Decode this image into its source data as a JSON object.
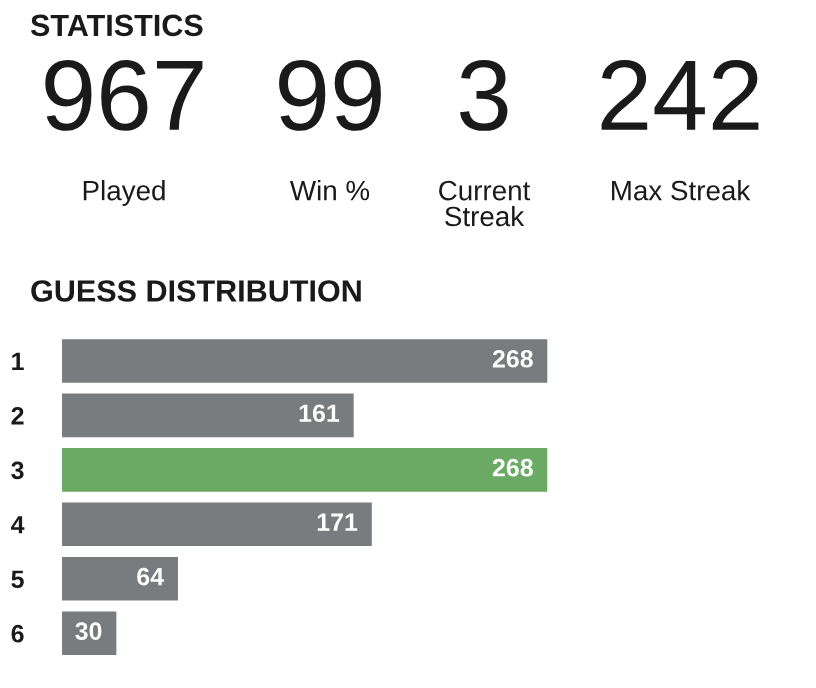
{
  "chart_data": [
    {
      "type": "other",
      "title": "STATISTICS",
      "annotations": [
        "967",
        "Played",
        "99",
        "Win %",
        "3",
        "Current\nStreak",
        "242",
        "Max Streak"
      ]
    },
    {
      "type": "bar",
      "orientation": "horizontal",
      "title": "GUESS DISTRIBUTION",
      "categories": [
        "1",
        "2",
        "3",
        "4",
        "5",
        "6"
      ],
      "values": [
        268,
        161,
        268,
        171,
        64,
        30
      ],
      "colors": [
        "#787c7e",
        "#787c7e",
        "#6aaa64",
        "#787c7e",
        "#787c7e",
        "#787c7e"
      ],
      "data_labels": true,
      "tick_labels": "y",
      "grid": false
    }
  ]
}
